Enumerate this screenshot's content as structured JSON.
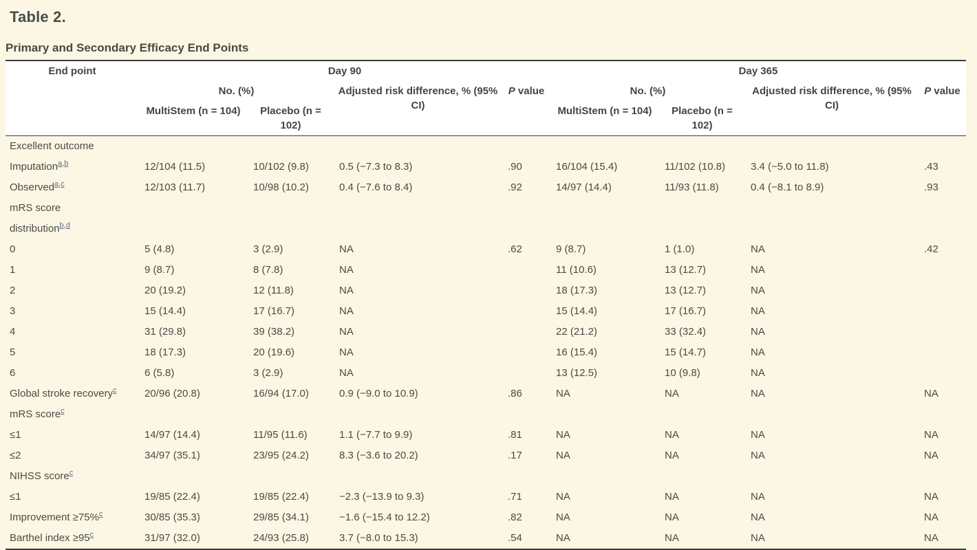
{
  "page": {
    "title": "Table 2.",
    "subtitle": "Primary and Secondary Efficacy End Points"
  },
  "colors": {
    "page_background": "#fbf7e4",
    "header_background": "#ffffff",
    "rule": "#3b3b38",
    "body_text": "#4a4a45",
    "footnote_link": "#5d6d80"
  },
  "table": {
    "headers": {
      "end_point": "End point",
      "day90": "Day 90",
      "day365": "Day 365",
      "no_pct_90": "No. (%)",
      "no_pct_365": "No. (%)",
      "multistem_90": "MultiStem (n = 104)",
      "placebo_90": "Placebo (n = 102)",
      "risk_diff_90": "Adjusted risk difference, % (95% CI)",
      "p_italic_90": "P",
      "p_rest_90": "value",
      "multistem_365": "MultiStem (n = 104)",
      "placebo_365": "Placebo (n = 102)",
      "risk_diff_365": "Adjusted risk difference, % (95% CI)",
      "p_italic_365": "P",
      "p_rest_365": "value"
    },
    "rows": [
      {
        "label": "Excellent outcome",
        "sups": [],
        "cells": [
          "",
          "",
          "",
          "",
          "",
          "",
          "",
          ""
        ]
      },
      {
        "label": "Imputation",
        "sups": [
          "a",
          "b"
        ],
        "cells": [
          "12/104 (11.5)",
          "10/102 (9.8)",
          "0.5 (−7.3 to 8.3)",
          ".90",
          "16/104 (15.4)",
          "11/102 (10.8)",
          "3.4 (−5.0 to 11.8)",
          ".43"
        ]
      },
      {
        "label": "Observed",
        "sups": [
          "a",
          "c"
        ],
        "cells": [
          "12/103 (11.7)",
          "10/98 (10.2)",
          "0.4 (−7.6 to 8.4)",
          ".92",
          "14/97 (14.4)",
          "11/93 (11.8)",
          "0.4 (−8.1 to 8.9)",
          ".93"
        ]
      },
      {
        "label": "mRS score\ndistribution",
        "sups": [
          "b",
          "d"
        ],
        "cells": [
          "",
          "",
          "",
          "",
          "",
          "",
          "",
          ""
        ]
      },
      {
        "label": "0",
        "sups": [],
        "cells": [
          "5 (4.8)",
          "3 (2.9)",
          "NA",
          ".62",
          "9 (8.7)",
          "1 (1.0)",
          "NA",
          ".42"
        ]
      },
      {
        "label": "1",
        "sups": [],
        "cells": [
          "9 (8.7)",
          "8 (7.8)",
          "NA",
          "",
          "11 (10.6)",
          "13 (12.7)",
          "NA",
          ""
        ]
      },
      {
        "label": "2",
        "sups": [],
        "cells": [
          "20 (19.2)",
          "12 (11.8)",
          "NA",
          "",
          "18 (17.3)",
          "13 (12.7)",
          "NA",
          ""
        ]
      },
      {
        "label": "3",
        "sups": [],
        "cells": [
          "15 (14.4)",
          "17 (16.7)",
          "NA",
          "",
          "15 (14.4)",
          "17 (16.7)",
          "NA",
          ""
        ]
      },
      {
        "label": "4",
        "sups": [],
        "cells": [
          "31 (29.8)",
          "39 (38.2)",
          "NA",
          "",
          "22 (21.2)",
          "33 (32.4)",
          "NA",
          ""
        ]
      },
      {
        "label": "5",
        "sups": [],
        "cells": [
          "18 (17.3)",
          "20 (19.6)",
          "NA",
          "",
          "16 (15.4)",
          "15 (14.7)",
          "NA",
          ""
        ]
      },
      {
        "label": "6",
        "sups": [],
        "cells": [
          "6 (5.8)",
          "3 (2.9)",
          "NA",
          "",
          "13 (12.5)",
          "10 (9.8)",
          "NA",
          ""
        ]
      },
      {
        "label": "Global stroke recovery",
        "sups": [
          "c"
        ],
        "cells": [
          "20/96 (20.8)",
          "16/94 (17.0)",
          "0.9 (−9.0 to 10.9)",
          ".86",
          "NA",
          "NA",
          "NA",
          "NA"
        ]
      },
      {
        "label": "mRS score",
        "sups": [
          "c"
        ],
        "cells": [
          "",
          "",
          "",
          "",
          "",
          "",
          "",
          ""
        ]
      },
      {
        "label": "≤1",
        "sups": [],
        "cells": [
          "14/97 (14.4)",
          "11/95 (11.6)",
          "1.1 (−7.7 to 9.9)",
          ".81",
          "NA",
          "NA",
          "NA",
          "NA"
        ]
      },
      {
        "label": "≤2",
        "sups": [],
        "cells": [
          "34/97 (35.1)",
          "23/95 (24.2)",
          "8.3 (−3.6 to 20.2)",
          ".17",
          "NA",
          "NA",
          "NA",
          "NA"
        ]
      },
      {
        "label": "NIHSS score",
        "sups": [
          "c"
        ],
        "cells": [
          "",
          "",
          "",
          "",
          "",
          "",
          "",
          ""
        ]
      },
      {
        "label": "≤1",
        "sups": [],
        "cells": [
          "19/85 (22.4)",
          "19/85 (22.4)",
          "−2.3 (−13.9 to 9.3)",
          ".71",
          "NA",
          "NA",
          "NA",
          "NA"
        ]
      },
      {
        "label": "Improvement ≥75%",
        "sups": [
          "c"
        ],
        "cells": [
          "30/85 (35.3)",
          "29/85 (34.1)",
          "−1.6 (−15.4 to 12.2)",
          ".82",
          "NA",
          "NA",
          "NA",
          "NA"
        ]
      },
      {
        "label": "Barthel index ≥95",
        "sups": [
          "c"
        ],
        "cells": [
          "31/97 (32.0)",
          "24/93 (25.8)",
          "3.7 (−8.0 to 15.3)",
          ".54",
          "NA",
          "NA",
          "NA",
          "NA"
        ]
      }
    ]
  }
}
